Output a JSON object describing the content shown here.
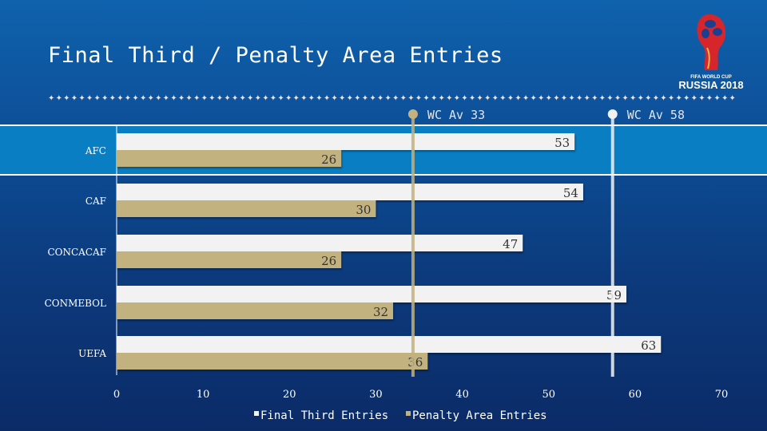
{
  "logo": {
    "line1": "FIFA WORLD CUP",
    "line2": "RUSSIA 2018"
  },
  "chart_data": {
    "type": "bar",
    "orientation": "horizontal",
    "title": "Final Third / Penalty Area Entries",
    "categories": [
      "AFC",
      "CAF",
      "CONCACAF",
      "CONMEBOL",
      "UEFA"
    ],
    "series": [
      {
        "name": "Final Third Entries",
        "values": [
          53,
          54,
          47,
          59,
          63
        ],
        "color": "#f2f2f2"
      },
      {
        "name": "Penalty Area Entries",
        "values": [
          26,
          30,
          26,
          32,
          36
        ],
        "color": "#c2b280"
      }
    ],
    "xlim": [
      0,
      70
    ],
    "xticks": [
      0,
      10,
      20,
      30,
      40,
      50,
      60,
      70
    ],
    "reference_lines": [
      {
        "label": "WC Av 33",
        "color": "#c2b280"
      },
      {
        "label": "WC Av 58",
        "color": "#f2f2f2"
      }
    ],
    "highlighted_category": "AFC",
    "highlight_color": "#0a7ec2",
    "legend": "bottom",
    "grid": false
  }
}
